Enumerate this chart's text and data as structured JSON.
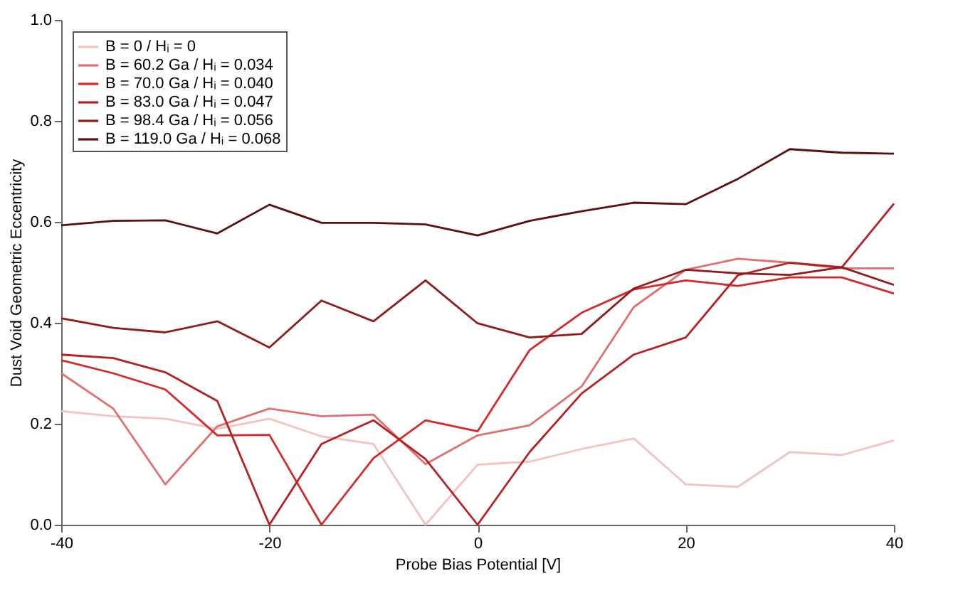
{
  "chart_data": {
    "type": "line",
    "xlabel": "Probe Bias Potential [V]",
    "ylabel": "Dust Void Geometric Eccentricity",
    "x": [
      -40,
      -35,
      -30,
      -25,
      -20,
      -15,
      -10,
      -5,
      0,
      5,
      10,
      15,
      20,
      25,
      30,
      35,
      40
    ],
    "series": [
      {
        "name": "B = 0 / Hᵢ = 0",
        "color": "#f4c2c2",
        "values": [
          0.225,
          0.215,
          0.21,
          0.19,
          0.21,
          0.175,
          0.16,
          0.0,
          0.119,
          0.125,
          0.15,
          0.171,
          0.08,
          0.075,
          0.144,
          0.138,
          0.167
        ]
      },
      {
        "name": "B = 60.2 Ga / Hᵢ = 0.034",
        "color": "#e07070",
        "values": [
          0.3,
          0.23,
          0.08,
          0.195,
          0.23,
          0.215,
          0.218,
          0.12,
          0.177,
          0.197,
          0.274,
          0.431,
          0.505,
          0.527,
          0.519,
          0.508,
          0.508
        ]
      },
      {
        "name": "B = 70.0 Ga / Hᵢ = 0.040",
        "color": "#d42a2a",
        "values": [
          0.326,
          0.3,
          0.268,
          0.177,
          0.178,
          0.0,
          0.132,
          0.207,
          0.185,
          0.346,
          0.42,
          0.466,
          0.484,
          0.473,
          0.49,
          0.49,
          0.458
        ]
      },
      {
        "name": "B = 83.0 Ga / Hᵢ = 0.047",
        "color": "#b52020",
        "values": [
          0.337,
          0.33,
          0.302,
          0.245,
          0.0,
          0.16,
          0.207,
          0.13,
          0.0,
          0.144,
          0.26,
          0.337,
          0.371,
          0.494,
          0.519,
          0.51,
          0.636
        ]
      },
      {
        "name": "B = 98.4 Ga / Hᵢ = 0.056",
        "color": "#8e1c1c",
        "values": [
          0.409,
          0.39,
          0.381,
          0.403,
          0.351,
          0.444,
          0.403,
          0.484,
          0.399,
          0.371,
          0.378,
          0.468,
          0.505,
          0.498,
          0.495,
          0.51,
          0.475
        ]
      },
      {
        "name": "B = 119.0 Ga / Hᵢ = 0.068",
        "color": "#5a1010",
        "values": [
          0.593,
          0.602,
          0.603,
          0.577,
          0.634,
          0.598,
          0.598,
          0.595,
          0.573,
          0.602,
          0.621,
          0.638,
          0.635,
          0.685,
          0.744,
          0.737,
          0.735
        ]
      }
    ],
    "xlim": [
      -40,
      40
    ],
    "xticks": [
      -40,
      -20,
      0,
      20,
      40
    ],
    "ylim": [
      0,
      1.0
    ],
    "yticks": [
      {
        "value": 0,
        "label": "0.0"
      },
      {
        "value": 0.2,
        "label": "0.2"
      },
      {
        "value": 0.4,
        "label": "0.4"
      },
      {
        "value": 0.6,
        "label": "0.6"
      },
      {
        "value": 0.8,
        "label": "0.8"
      },
      {
        "value": 1.0,
        "label": "1.0"
      }
    ],
    "grid": false,
    "legend": "top left",
    "marker": "none",
    "line_style": "solid"
  }
}
